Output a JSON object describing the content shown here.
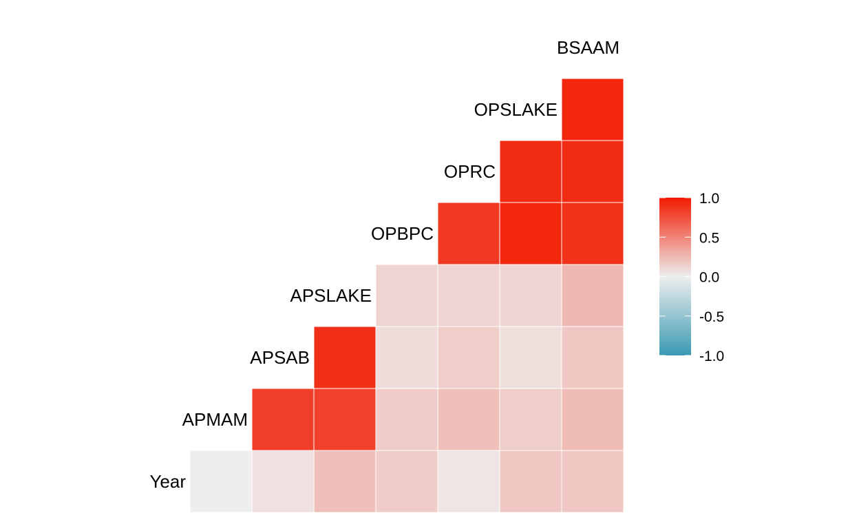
{
  "chart_data": {
    "type": "heatmap",
    "title": "",
    "xlabel": "",
    "ylabel": "",
    "variables": [
      "Year",
      "APMAM",
      "APSAB",
      "APSLAKE",
      "OPBPC",
      "OPRC",
      "OPSLAKE",
      "BSAAM"
    ],
    "cells": [
      {
        "row": "Year",
        "col": "Year",
        "value": 0.0
      },
      {
        "row": "Year",
        "col": "APMAM",
        "value": 0.06
      },
      {
        "row": "Year",
        "col": "APSAB",
        "value": 0.22
      },
      {
        "row": "Year",
        "col": "APSLAKE",
        "value": 0.16
      },
      {
        "row": "Year",
        "col": "OPBPC",
        "value": 0.04
      },
      {
        "row": "Year",
        "col": "OPRC",
        "value": 0.18
      },
      {
        "row": "Year",
        "col": "OPSLAKE",
        "value": 0.18
      },
      {
        "row": "APMAM",
        "col": "APMAM",
        "value": 0.83
      },
      {
        "row": "APMAM",
        "col": "APSAB",
        "value": 0.82
      },
      {
        "row": "APMAM",
        "col": "APSLAKE",
        "value": 0.16
      },
      {
        "row": "APMAM",
        "col": "OPBPC",
        "value": 0.22
      },
      {
        "row": "APMAM",
        "col": "OPRC",
        "value": 0.15
      },
      {
        "row": "APMAM",
        "col": "OPSLAKE",
        "value": 0.24
      },
      {
        "row": "APSAB",
        "col": "APSAB",
        "value": 0.9
      },
      {
        "row": "APSAB",
        "col": "APSLAKE",
        "value": 0.08
      },
      {
        "row": "APSAB",
        "col": "OPBPC",
        "value": 0.15
      },
      {
        "row": "APSAB",
        "col": "OPRC",
        "value": 0.07
      },
      {
        "row": "APSAB",
        "col": "OPSLAKE",
        "value": 0.18
      },
      {
        "row": "APSLAKE",
        "col": "APSLAKE",
        "value": 0.12
      },
      {
        "row": "APSLAKE",
        "col": "OPBPC",
        "value": 0.12
      },
      {
        "row": "APSLAKE",
        "col": "OPRC",
        "value": 0.12
      },
      {
        "row": "APSLAKE",
        "col": "OPSLAKE",
        "value": 0.25
      },
      {
        "row": "OPBPC",
        "col": "OPBPC",
        "value": 0.86
      },
      {
        "row": "OPBPC",
        "col": "OPRC",
        "value": 0.94
      },
      {
        "row": "OPBPC",
        "col": "OPSLAKE",
        "value": 0.89
      },
      {
        "row": "OPRC",
        "col": "OPRC",
        "value": 0.92
      },
      {
        "row": "OPRC",
        "col": "OPSLAKE",
        "value": 0.92
      },
      {
        "row": "OPSLAKE",
        "col": "OPSLAKE",
        "value": 0.94
      }
    ],
    "legend": {
      "position": "right",
      "ticks": [
        "1.0",
        "0.5",
        "0.0",
        "-0.5",
        "-1.0"
      ],
      "range": [
        -1,
        1
      ]
    },
    "colors": {
      "low": "#3A9AB2",
      "mid": "#EEEEEE",
      "high": "#F21A00"
    },
    "grid": false
  }
}
